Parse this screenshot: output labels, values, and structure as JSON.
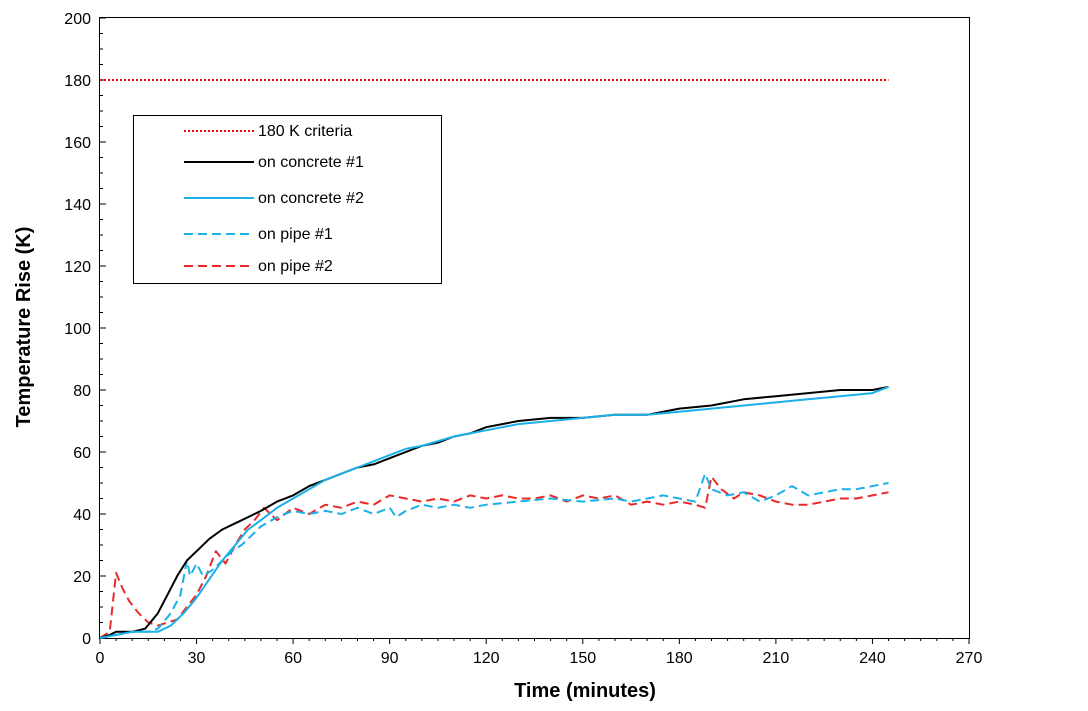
{
  "chart_data": {
    "type": "line",
    "xlabel": "Time (minutes)",
    "ylabel": "Temperature Rise (K)",
    "xlim": [
      0,
      270
    ],
    "ylim": [
      0,
      200
    ],
    "xticks": [
      "0",
      "30",
      "60",
      "90",
      "120",
      "150",
      "180",
      "210",
      "240",
      "270"
    ],
    "yticks": [
      "0",
      "20",
      "40",
      "60",
      "80",
      "100",
      "120",
      "140",
      "160",
      "180",
      "200"
    ],
    "grid": false,
    "legend_position": "upper-left",
    "series": [
      {
        "name": "180 K criteria",
        "color": "#ff0000",
        "style": "dotted",
        "x": [
          0,
          245
        ],
        "y": [
          180,
          180
        ]
      },
      {
        "name": "on concrete #1",
        "color": "#000000",
        "style": "solid",
        "x": [
          0,
          3,
          5,
          10,
          14,
          18,
          21,
          24,
          27,
          30,
          34,
          38,
          42,
          46,
          50,
          55,
          60,
          65,
          70,
          75,
          80,
          85,
          90,
          95,
          100,
          105,
          110,
          115,
          120,
          130,
          140,
          150,
          160,
          170,
          180,
          190,
          200,
          210,
          220,
          230,
          240,
          245
        ],
        "y": [
          0,
          1,
          2,
          2,
          3,
          8,
          14,
          20,
          25,
          28,
          32,
          35,
          37,
          39,
          41,
          44,
          46,
          49,
          51,
          53,
          55,
          56,
          58,
          60,
          62,
          63,
          65,
          66,
          68,
          70,
          71,
          71,
          72,
          72,
          74,
          75,
          77,
          78,
          79,
          80,
          80,
          81
        ]
      },
      {
        "name": "on concrete #2",
        "color": "#1ab0e8",
        "style": "solid",
        "x": [
          0,
          5,
          10,
          15,
          18,
          22,
          26,
          30,
          34,
          38,
          42,
          46,
          50,
          55,
          60,
          65,
          70,
          75,
          80,
          85,
          90,
          95,
          100,
          110,
          120,
          130,
          140,
          150,
          160,
          170,
          180,
          190,
          200,
          210,
          220,
          230,
          240,
          245
        ],
        "y": [
          0,
          1,
          2,
          2,
          2,
          4,
          8,
          13,
          19,
          25,
          30,
          35,
          38,
          42,
          45,
          48,
          51,
          53,
          55,
          57,
          59,
          61,
          62,
          65,
          67,
          69,
          70,
          71,
          72,
          72,
          73,
          74,
          75,
          76,
          77,
          78,
          79,
          81
        ]
      },
      {
        "name": "on pipe #1",
        "color": "#1ab0e8",
        "style": "dashed",
        "x": [
          0,
          5,
          10,
          15,
          18,
          22,
          25,
          27,
          28,
          30,
          32,
          35,
          38,
          41,
          44,
          47,
          50,
          55,
          60,
          65,
          70,
          75,
          80,
          85,
          90,
          92,
          95,
          100,
          105,
          110,
          115,
          120,
          130,
          140,
          150,
          160,
          165,
          170,
          175,
          180,
          185,
          188,
          190,
          195,
          200,
          205,
          210,
          215,
          220,
          225,
          230,
          235,
          240,
          245
        ],
        "y": [
          0,
          1,
          2,
          2,
          3,
          8,
          14,
          25,
          20,
          24,
          20,
          22,
          25,
          28,
          30,
          33,
          36,
          39,
          41,
          40,
          41,
          40,
          42,
          40,
          42,
          39,
          41,
          43,
          42,
          43,
          42,
          43,
          44,
          45,
          44,
          45,
          44,
          45,
          46,
          45,
          44,
          53,
          48,
          46,
          47,
          44,
          46,
          49,
          46,
          47,
          48,
          48,
          49,
          50
        ]
      },
      {
        "name": "on pipe #2",
        "color": "#e82a2a",
        "style": "dashed",
        "x": [
          0,
          3,
          5,
          7,
          9,
          12,
          15,
          18,
          21,
          24,
          27,
          30,
          33,
          36,
          39,
          42,
          45,
          48,
          51,
          55,
          60,
          65,
          70,
          75,
          80,
          85,
          90,
          95,
          100,
          105,
          110,
          115,
          120,
          125,
          130,
          135,
          140,
          145,
          150,
          155,
          160,
          165,
          170,
          175,
          180,
          185,
          188,
          190,
          193,
          197,
          200,
          205,
          210,
          215,
          220,
          225,
          230,
          235,
          240,
          245
        ],
        "y": [
          0,
          2,
          21,
          16,
          12,
          8,
          5,
          4,
          5,
          6,
          10,
          14,
          20,
          28,
          24,
          30,
          35,
          38,
          42,
          38,
          42,
          40,
          43,
          42,
          44,
          43,
          46,
          45,
          44,
          45,
          44,
          46,
          45,
          46,
          45,
          45,
          46,
          44,
          46,
          45,
          46,
          43,
          44,
          43,
          44,
          43,
          42,
          52,
          48,
          45,
          47,
          46,
          44,
          43,
          43,
          44,
          45,
          45,
          46,
          47
        ]
      }
    ]
  }
}
